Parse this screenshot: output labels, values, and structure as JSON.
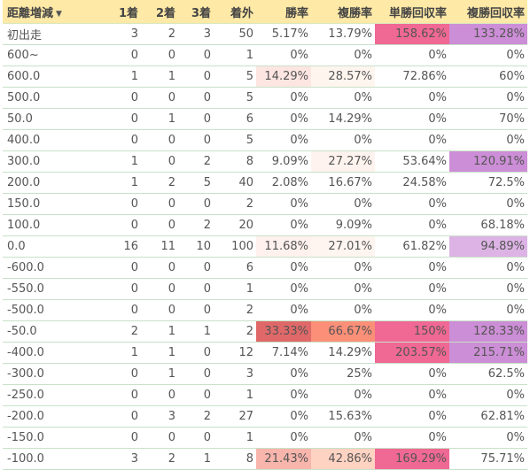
{
  "header": {
    "label_col": "距離増減",
    "sort_icon": "caret-down-icon",
    "cols": [
      "1着",
      "2着",
      "3着",
      "着外",
      "勝率",
      "複勝率",
      "単勝回収率",
      "複勝回収率"
    ]
  },
  "rows": [
    {
      "label": "初出走",
      "cells": [
        "3",
        "2",
        "3",
        "50",
        "5.17%",
        "13.79%",
        "158.62%",
        "133.28%"
      ],
      "colors": [
        "",
        "",
        "",
        "",
        "",
        "",
        "#f06894",
        "#cc8ed6"
      ]
    },
    {
      "label": "600~",
      "cells": [
        "0",
        "0",
        "0",
        "1",
        "0%",
        "0%",
        "0%",
        "0%"
      ],
      "colors": [
        "",
        "",
        "",
        "",
        "",
        "",
        "",
        ""
      ]
    },
    {
      "label": "600.0",
      "cells": [
        "1",
        "1",
        "0",
        "5",
        "14.29%",
        "28.57%",
        "72.86%",
        "60%"
      ],
      "colors": [
        "",
        "",
        "",
        "",
        "#fde6e2",
        "#fff5ef",
        "",
        ""
      ]
    },
    {
      "label": "500.0",
      "cells": [
        "0",
        "0",
        "0",
        "5",
        "0%",
        "0%",
        "0%",
        "0%"
      ],
      "colors": [
        "",
        "",
        "",
        "",
        "",
        "",
        "",
        ""
      ]
    },
    {
      "label": "50.0",
      "cells": [
        "0",
        "1",
        "0",
        "6",
        "0%",
        "14.29%",
        "0%",
        "70%"
      ],
      "colors": [
        "",
        "",
        "",
        "",
        "",
        "",
        "",
        ""
      ]
    },
    {
      "label": "400.0",
      "cells": [
        "0",
        "0",
        "0",
        "5",
        "0%",
        "0%",
        "0%",
        "0%"
      ],
      "colors": [
        "",
        "",
        "",
        "",
        "",
        "",
        "",
        ""
      ]
    },
    {
      "label": "300.0",
      "cells": [
        "1",
        "0",
        "2",
        "8",
        "9.09%",
        "27.27%",
        "53.64%",
        "120.91%"
      ],
      "colors": [
        "",
        "",
        "",
        "",
        "",
        "#fff3ef",
        "",
        "#cc8ed6"
      ]
    },
    {
      "label": "200.0",
      "cells": [
        "1",
        "2",
        "5",
        "40",
        "2.08%",
        "16.67%",
        "24.58%",
        "72.5%"
      ],
      "colors": [
        "",
        "",
        "",
        "",
        "",
        "",
        "",
        ""
      ]
    },
    {
      "label": "150.0",
      "cells": [
        "0",
        "0",
        "0",
        "2",
        "0%",
        "0%",
        "0%",
        "0%"
      ],
      "colors": [
        "",
        "",
        "",
        "",
        "",
        "",
        "",
        ""
      ]
    },
    {
      "label": "100.0",
      "cells": [
        "0",
        "0",
        "2",
        "20",
        "0%",
        "9.09%",
        "0%",
        "68.18%"
      ],
      "colors": [
        "",
        "",
        "",
        "",
        "",
        "",
        "",
        ""
      ]
    },
    {
      "label": "0.0",
      "cells": [
        "16",
        "11",
        "10",
        "100",
        "11.68%",
        "27.01%",
        "61.82%",
        "94.89%"
      ],
      "colors": [
        "",
        "",
        "",
        "",
        "#fef1ee",
        "#fff5f0",
        "",
        "#ddb3e5"
      ]
    },
    {
      "label": "-600.0",
      "cells": [
        "0",
        "0",
        "0",
        "6",
        "0%",
        "0%",
        "0%",
        "0%"
      ],
      "colors": [
        "",
        "",
        "",
        "",
        "",
        "",
        "",
        ""
      ]
    },
    {
      "label": "-550.0",
      "cells": [
        "0",
        "0",
        "0",
        "1",
        "0%",
        "0%",
        "0%",
        "0%"
      ],
      "colors": [
        "",
        "",
        "",
        "",
        "",
        "",
        "",
        ""
      ]
    },
    {
      "label": "-500.0",
      "cells": [
        "0",
        "0",
        "0",
        "2",
        "0%",
        "0%",
        "0%",
        "0%"
      ],
      "colors": [
        "",
        "",
        "",
        "",
        "",
        "",
        "",
        ""
      ]
    },
    {
      "label": "-50.0",
      "cells": [
        "2",
        "1",
        "1",
        "2",
        "33.33%",
        "66.67%",
        "150%",
        "128.33%"
      ],
      "colors": [
        "",
        "",
        "",
        "",
        "#e06868",
        "#fb8f78",
        "#f06894",
        "#cc8ed6"
      ]
    },
    {
      "label": "-400.0",
      "cells": [
        "1",
        "1",
        "0",
        "12",
        "7.14%",
        "14.29%",
        "203.57%",
        "215.71%"
      ],
      "colors": [
        "",
        "",
        "",
        "",
        "",
        "",
        "#f06894",
        "#cc8ed6"
      ]
    },
    {
      "label": "-300.0",
      "cells": [
        "0",
        "1",
        "0",
        "3",
        "0%",
        "25%",
        "0%",
        "62.5%"
      ],
      "colors": [
        "",
        "",
        "",
        "",
        "",
        "",
        "",
        ""
      ]
    },
    {
      "label": "-250.0",
      "cells": [
        "0",
        "0",
        "0",
        "1",
        "0%",
        "0%",
        "0%",
        "0%"
      ],
      "colors": [
        "",
        "",
        "",
        "",
        "",
        "",
        "",
        ""
      ]
    },
    {
      "label": "-200.0",
      "cells": [
        "0",
        "3",
        "2",
        "27",
        "0%",
        "15.63%",
        "0%",
        "62.81%"
      ],
      "colors": [
        "",
        "",
        "",
        "",
        "",
        "",
        "",
        ""
      ]
    },
    {
      "label": "-150.0",
      "cells": [
        "0",
        "0",
        "0",
        "1",
        "0%",
        "0%",
        "0%",
        "0%"
      ],
      "colors": [
        "",
        "",
        "",
        "",
        "",
        "",
        "",
        ""
      ]
    },
    {
      "label": "-100.0",
      "cells": [
        "3",
        "2",
        "1",
        "8",
        "21.43%",
        "42.86%",
        "169.29%",
        "75.71%"
      ],
      "colors": [
        "",
        "",
        "",
        "",
        "#f7b5ac",
        "#ffd3c2",
        "#f06894",
        ""
      ]
    }
  ]
}
